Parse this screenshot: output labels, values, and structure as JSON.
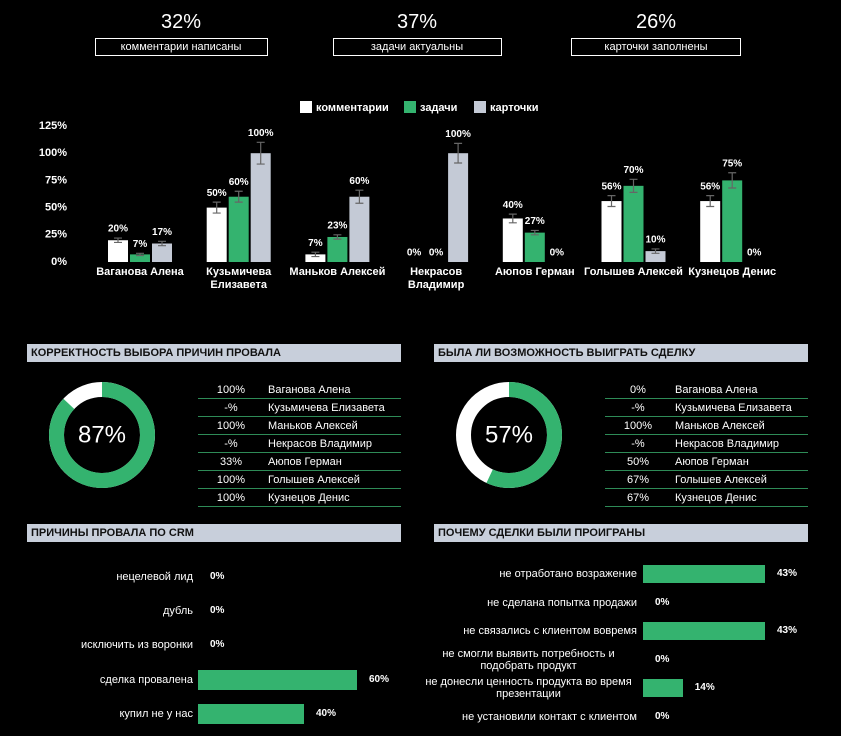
{
  "kpis": [
    {
      "value": "32%",
      "label": "комментарии написаны"
    },
    {
      "value": "37%",
      "label": "задачи актуальны"
    },
    {
      "value": "26%",
      "label": "карточки заполнены"
    }
  ],
  "chart_data": [
    {
      "type": "bar",
      "categories": [
        "Ваганова Алена",
        "Кузьмичева Елизавета",
        "Маньков Алексей",
        "Некрасов Владимир",
        "Аюпов Герман",
        "Голышев Алексей",
        "Кузнецов Денис"
      ],
      "series": [
        {
          "name": "комментарии",
          "color": "#ffffff",
          "values": [
            20,
            50,
            7,
            0,
            40,
            56,
            56
          ],
          "errors": [
            2,
            5,
            2,
            0,
            4,
            5,
            5
          ],
          "value_labels": [
            "20%",
            "50%",
            "7%",
            "0%",
            "40%",
            "56%",
            "56%"
          ]
        },
        {
          "name": "задачи",
          "color": "#34b36f",
          "values": [
            7,
            60,
            23,
            0,
            27,
            70,
            75
          ],
          "errors": [
            1,
            5,
            2,
            0,
            2,
            6,
            7
          ],
          "value_labels": [
            "7%",
            "60%",
            "23%",
            "0%",
            "27%",
            "70%",
            "75%"
          ]
        },
        {
          "name": "карточки",
          "color": "#c4cad6",
          "values": [
            17,
            100,
            60,
            100,
            0,
            10,
            0
          ],
          "errors": [
            2,
            10,
            6,
            9,
            0,
            2,
            0
          ],
          "value_labels": [
            "17%",
            "100%",
            "60%",
            "100%",
            "0%",
            "10%",
            "0%"
          ]
        }
      ],
      "ylim": [
        0,
        125
      ],
      "yticks": [
        {
          "value": 0,
          "label": "0%"
        },
        {
          "value": 25,
          "label": "25%"
        },
        {
          "value": 50,
          "label": "50%"
        },
        {
          "value": 75,
          "label": "75%"
        },
        {
          "value": 100,
          "label": "100%"
        },
        {
          "value": 125,
          "label": "125%"
        }
      ],
      "grid": false
    },
    {
      "type": "donut",
      "title": "КОРРЕКТНОСТЬ ВЫБОРА ПРИЧИН ПРОВАЛА",
      "value": 87,
      "value_label": "87%",
      "color": "#34b36f",
      "table": {
        "rows": [
          [
            "100%",
            "Ваганова Алена"
          ],
          [
            "-%",
            "Кузьмичева Елизавета"
          ],
          [
            "100%",
            "Маньков Алексей"
          ],
          [
            "-%",
            "Некрасов Владимир"
          ],
          [
            "33%",
            "Аюпов Герман"
          ],
          [
            "100%",
            "Голышев Алексей"
          ],
          [
            "100%",
            "Кузнецов Денис"
          ]
        ]
      }
    },
    {
      "type": "donut",
      "title": "БЫЛА ЛИ ВОЗМОЖНОСТЬ ВЫИГРАТЬ СДЕЛКУ",
      "value": 57,
      "value_label": "57%",
      "color": "#34b36f",
      "table": {
        "rows": [
          [
            "0%",
            "Ваганова Алена"
          ],
          [
            "-%",
            "Кузьмичева Елизавета"
          ],
          [
            "100%",
            "Маньков Алексей"
          ],
          [
            "-%",
            "Некрасов Владимир"
          ],
          [
            "50%",
            "Аюпов Герман"
          ],
          [
            "67%",
            "Голышев Алексей"
          ],
          [
            "67%",
            "Кузнецов Денис"
          ]
        ]
      }
    },
    {
      "type": "hbar",
      "title": "ПРИЧИНЫ ПРОВАЛА ПО CRM",
      "color": "#34b36f",
      "categories": [
        "нецелевой лид",
        "дубль",
        "исключить из воронки",
        "сделка провалена",
        "купил не у нас"
      ],
      "values": [
        0,
        0,
        0,
        60,
        40
      ],
      "value_labels": [
        "0%",
        "0%",
        "0%",
        "60%",
        "40%"
      ],
      "xlim": [
        0,
        60
      ]
    },
    {
      "type": "hbar",
      "title": "ПОЧЕМУ СДЕЛКИ БЫЛИ ПРОИГРАНЫ",
      "color": "#34b36f",
      "categories": [
        "не отработано возражение",
        "не сделана попытка продажи",
        "не связались с клиентом вовремя",
        "не смогли выявить потребность и подобрать продукт",
        "не донесли ценность продукта во время презентации",
        "не установили контакт с клиентом"
      ],
      "values": [
        43,
        0,
        43,
        0,
        14,
        0
      ],
      "value_labels": [
        "43%",
        "0%",
        "43%",
        "0%",
        "14%",
        "0%"
      ],
      "xlim": [
        0,
        43
      ]
    }
  ]
}
